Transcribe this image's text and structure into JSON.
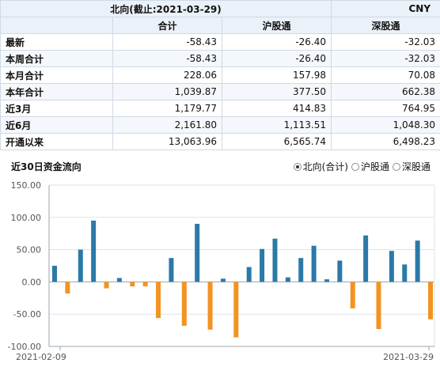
{
  "table": {
    "title": "北向(截止:2021-03-29)",
    "currency": "CNY",
    "columns": [
      "合计",
      "沪股通",
      "深股通"
    ],
    "rows": [
      {
        "label": "最新",
        "values": [
          "-58.43",
          "-26.40",
          "-32.03"
        ]
      },
      {
        "label": "本周合计",
        "values": [
          "-58.43",
          "-26.40",
          "-32.03"
        ]
      },
      {
        "label": "本月合计",
        "values": [
          "228.06",
          "157.98",
          "70.08"
        ]
      },
      {
        "label": "本年合计",
        "values": [
          "1,039.87",
          "377.50",
          "662.38"
        ]
      },
      {
        "label": "近3月",
        "values": [
          "1,179.77",
          "414.83",
          "764.95"
        ]
      },
      {
        "label": "近6月",
        "values": [
          "2,161.80",
          "1,113.51",
          "1,048.30"
        ]
      },
      {
        "label": "开通以来",
        "values": [
          "13,063.96",
          "6,565.74",
          "6,498.23"
        ]
      }
    ]
  },
  "chart_title": "近30日资金流向",
  "legend": [
    {
      "label": "北向(合计)",
      "checked": true
    },
    {
      "label": "沪股通",
      "checked": false
    },
    {
      "label": "深股通",
      "checked": false
    }
  ],
  "colors": {
    "positive": "#2a7aa8",
    "negative": "#f39322",
    "grid": "#dde3ea",
    "axis": "#9aa5b1"
  },
  "chart_data": {
    "type": "bar",
    "x_start_label": "2021-02-09",
    "x_end_label": "2021-03-29",
    "ylim": [
      -100,
      150
    ],
    "yticks": [
      150,
      100,
      50,
      0,
      -50,
      -100
    ],
    "ytick_labels": [
      "150.00",
      "100.00",
      "50.00",
      "0.00",
      "-50.00",
      "-100.00"
    ],
    "values": [
      25,
      -18,
      50,
      95,
      -10,
      6,
      -7,
      -7,
      -56,
      37,
      -68,
      90,
      -74,
      5,
      -86,
      23,
      51,
      67,
      7,
      37,
      56,
      4,
      33,
      -41,
      72,
      -73,
      48,
      27,
      64,
      -58
    ]
  }
}
